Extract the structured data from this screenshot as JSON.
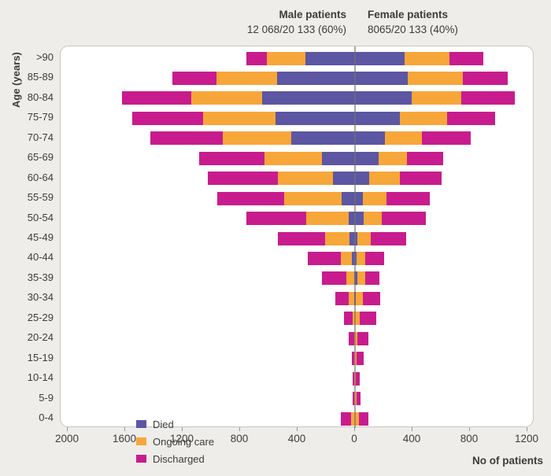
{
  "header": {
    "male": {
      "title": "Male patients",
      "stats": "12 068/20 133 (60%)"
    },
    "female": {
      "title": "Female patients",
      "stats": "8065/20 133 (40%)"
    }
  },
  "y_axis_title": "Age (years)",
  "x_axis_title": "No of patients",
  "legend": [
    {
      "label": "Died",
      "color": "#5c56a3"
    },
    {
      "label": "Ongoing care",
      "color": "#f7a63a"
    },
    {
      "label": "Discharged",
      "color": "#c81c8e"
    }
  ],
  "colors": {
    "died": "#5c56a3",
    "ongoing_care": "#f7a63a",
    "discharged": "#c81c8e",
    "background": "#efedea",
    "plot_border": "#c9c6c3",
    "center_line": "rgba(115,112,108,0.6)"
  },
  "chart_data": {
    "type": "bar",
    "subtype": "population-pyramid-stacked",
    "title": "",
    "xlabel": "No of patients",
    "ylabel": "Age (years)",
    "legend_position": "bottom-left-inside",
    "grid": false,
    "axis_tick_labels": [
      "2000",
      "1600",
      "1200",
      "800",
      "400",
      "0",
      "400",
      "800",
      "1200"
    ],
    "axis_tick_values": [
      -2000,
      -1600,
      -1200,
      -800,
      -400,
      0,
      400,
      800,
      1200
    ],
    "xlim_left_side": 2000,
    "xlim_right_side": 1250,
    "categories": [
      ">90",
      "85-89",
      "80-84",
      "75-79",
      "70-74",
      "65-69",
      "60-64",
      "55-59",
      "50-54",
      "45-49",
      "40-44",
      "35-39",
      "30-34",
      "25-29",
      "20-24",
      "15-19",
      "10-14",
      "5-9",
      "0-4"
    ],
    "male": {
      "died": [
        345,
        542,
        647,
        553,
        444,
        230,
        153,
        93,
        44,
        38,
        20,
        8,
        6,
        0,
        0,
        0,
        0,
        0,
        0
      ],
      "ongoing_care": [
        268,
        422,
        493,
        504,
        477,
        400,
        384,
        400,
        296,
        170,
        80,
        55,
        37,
        15,
        8,
        4,
        4,
        4,
        27
      ],
      "discharged": [
        142,
        307,
        482,
        493,
        504,
        455,
        488,
        466,
        416,
        329,
        230,
        170,
        95,
        62,
        36,
        18,
        14,
        14,
        73
      ]
    },
    "female": {
      "died": [
        345,
        367,
        395,
        312,
        208,
        164,
        99,
        55,
        60,
        16,
        10,
        14,
        6,
        0,
        0,
        0,
        0,
        0,
        0
      ],
      "ongoing_care": [
        312,
        384,
        345,
        329,
        258,
        197,
        214,
        164,
        126,
        93,
        64,
        60,
        49,
        33,
        18,
        9,
        5,
        9,
        27
      ],
      "discharged": [
        236,
        312,
        373,
        334,
        340,
        252,
        290,
        301,
        307,
        247,
        128,
        95,
        121,
        117,
        73,
        49,
        27,
        31,
        64
      ]
    }
  }
}
